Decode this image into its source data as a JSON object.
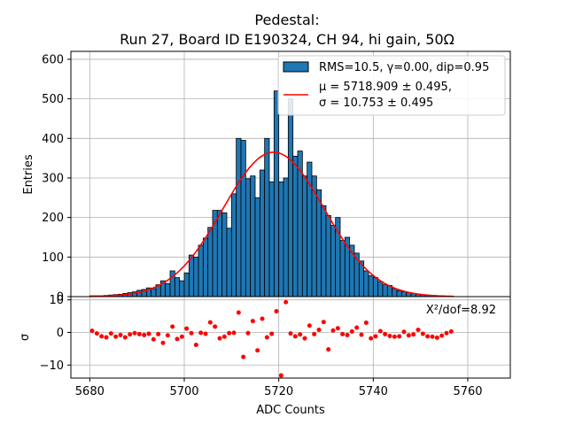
{
  "chart_data": {
    "type": "bar",
    "title_line1": "Pedestal:",
    "title_line2": "Run 27, Board ID E190324, CH 94, hi gain, 50Ω",
    "xlabel": "ADC Counts",
    "ylabel": "Entries",
    "residual_ylabel": "σ",
    "xlim": [
      5676,
      5769
    ],
    "ylim": [
      0,
      620
    ],
    "residual_ylim": [
      -14,
      11
    ],
    "x_ticks": [
      5680,
      5700,
      5720,
      5740,
      5760
    ],
    "y_ticks": [
      0,
      100,
      200,
      300,
      400,
      500,
      600
    ],
    "residual_y_ticks": [
      -10,
      0,
      10
    ],
    "grid": true,
    "legend_position": "top-right",
    "legend": {
      "hist_label": "RMS=10.5, γ=0.00, dip=0.95",
      "fit_label_line1": "μ = 5718.909 ± 0.495,",
      "fit_label_line2": "σ = 10.753 ± 0.495"
    },
    "chi2_label": "X²/dof=8.92",
    "fit": {
      "mu": 5718.909,
      "sigma": 10.753,
      "amplitude": 365
    },
    "histogram": {
      "bin_width": 1,
      "bin_starts": [
        5680,
        5681,
        5682,
        5683,
        5684,
        5685,
        5686,
        5687,
        5688,
        5689,
        5690,
        5691,
        5692,
        5693,
        5694,
        5695,
        5696,
        5697,
        5698,
        5699,
        5700,
        5701,
        5702,
        5703,
        5704,
        5705,
        5706,
        5707,
        5708,
        5709,
        5710,
        5711,
        5712,
        5713,
        5714,
        5715,
        5716,
        5717,
        5718,
        5719,
        5720,
        5721,
        5722,
        5723,
        5724,
        5725,
        5726,
        5727,
        5728,
        5729,
        5730,
        5731,
        5732,
        5733,
        5734,
        5735,
        5736,
        5737,
        5738,
        5739,
        5740,
        5741,
        5742,
        5743,
        5744,
        5745,
        5746,
        5747,
        5748,
        5749,
        5750,
        5751,
        5752,
        5753,
        5754,
        5755,
        5756
      ],
      "counts": [
        2,
        2,
        2,
        3,
        4,
        5,
        6,
        8,
        10,
        12,
        16,
        18,
        22,
        20,
        30,
        40,
        33,
        65,
        48,
        40,
        60,
        105,
        100,
        130,
        148,
        175,
        218,
        218,
        212,
        173,
        260,
        400,
        395,
        298,
        305,
        250,
        320,
        400,
        290,
        520,
        290,
        300,
        500,
        355,
        368,
        305,
        340,
        305,
        270,
        230,
        205,
        180,
        200,
        142,
        150,
        130,
        110,
        90,
        65,
        53,
        48,
        38,
        30,
        28,
        20,
        15,
        12,
        10,
        8,
        6,
        5,
        4,
        3,
        2,
        2,
        1,
        1
      ]
    },
    "residuals": {
      "x": [
        5680.5,
        5681.5,
        5682.5,
        5683.5,
        5684.5,
        5685.5,
        5686.5,
        5687.5,
        5688.5,
        5689.5,
        5690.5,
        5691.5,
        5692.5,
        5693.5,
        5694.5,
        5695.5,
        5696.5,
        5697.5,
        5698.5,
        5699.5,
        5700.5,
        5701.5,
        5702.5,
        5703.5,
        5704.5,
        5705.5,
        5706.5,
        5707.5,
        5708.5,
        5709.5,
        5710.5,
        5711.5,
        5712.5,
        5713.5,
        5714.5,
        5715.5,
        5716.5,
        5717.5,
        5718.5,
        5719.5,
        5720.5,
        5721.5,
        5722.5,
        5723.5,
        5724.5,
        5725.5,
        5726.5,
        5727.5,
        5728.5,
        5729.5,
        5730.5,
        5731.5,
        5732.5,
        5733.5,
        5734.5,
        5735.5,
        5736.5,
        5737.5,
        5738.5,
        5739.5,
        5740.5,
        5741.5,
        5742.5,
        5743.5,
        5744.5,
        5745.5,
        5746.5,
        5747.5,
        5748.5,
        5749.5,
        5750.5,
        5751.5,
        5752.5,
        5753.5,
        5754.5,
        5755.5,
        5756.5
      ],
      "y": [
        0.5,
        -0.3,
        -1.2,
        -1.5,
        -0.3,
        -1.3,
        -0.8,
        -1.5,
        -0.6,
        -0.2,
        -0.5,
        -0.8,
        -0.4,
        -2.1,
        -0.5,
        -3.2,
        -0.9,
        1.8,
        -2.0,
        -1.3,
        1.2,
        -0.2,
        -3.8,
        -0.1,
        -0.4,
        3.1,
        1.8,
        -1.8,
        -1.3,
        -0.2,
        -0.1,
        6.1,
        -7.5,
        -0.2,
        3.5,
        -5.5,
        4.2,
        -1.5,
        -0.4,
        6.5,
        -13.2,
        9.3,
        -0.3,
        -1.2,
        -0.6,
        -1.8,
        2.1,
        -0.5,
        0.8,
        3.2,
        -5.2,
        0.6,
        1.3,
        -0.5,
        -0.8,
        0.3,
        1.5,
        -0.7,
        3.0,
        -1.8,
        -1.2,
        0.4,
        -0.5,
        -1.1,
        -1.3,
        -1.2,
        0.2,
        -0.9,
        -0.6,
        0.8,
        -0.4,
        -1.2,
        -1.3,
        -1.6,
        -1.0,
        -0.2,
        0.3
      ]
    },
    "colors": {
      "bar": "#1f77b4",
      "bar_edge": "#000000",
      "fit": "#ff0000",
      "residual": "#ff0000",
      "grid": "#b0b0b0"
    }
  }
}
